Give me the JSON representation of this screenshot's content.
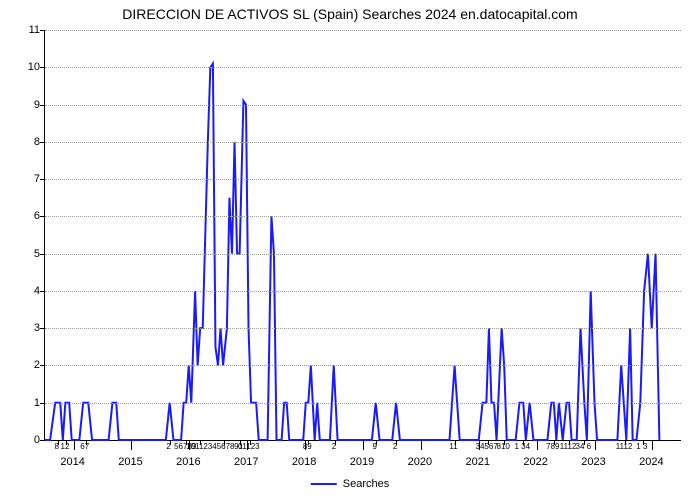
{
  "chart": {
    "type": "line",
    "title": "DIRECCION DE ACTIVOS SL (Spain) Searches 2024 en.datocapital.com",
    "title_fontsize": 14,
    "background_color": "#ffffff",
    "grid_color": "#999999",
    "line_color": "#1a1aff",
    "line_width": 2,
    "ylim": [
      0,
      11
    ],
    "ytick_vals": [
      0,
      1,
      2,
      3,
      4,
      5,
      6,
      7,
      8,
      9,
      10,
      11
    ],
    "year_labels": [
      "2014",
      "2015",
      "2016",
      "2017",
      "2018",
      "2019",
      "2020",
      "2021",
      "2022",
      "2023",
      "2024"
    ],
    "year_positions": [
      0.045,
      0.136,
      0.227,
      0.318,
      0.409,
      0.5,
      0.591,
      0.682,
      0.773,
      0.864,
      0.955
    ],
    "minor_tick_groups": [
      {
        "pos": 0.02,
        "label": "8"
      },
      {
        "pos": 0.033,
        "label": "12"
      },
      {
        "pos": 0.064,
        "label": "67"
      },
      {
        "pos": 0.196,
        "label": "2"
      },
      {
        "pos": 0.222,
        "label": "56789"
      },
      {
        "pos": 0.244,
        "label": "101123"
      },
      {
        "pos": 0.282,
        "label": "45678"
      },
      {
        "pos": 0.306,
        "label": "91"
      },
      {
        "pos": 0.322,
        "label": "01123"
      },
      {
        "pos": 0.414,
        "label": "89"
      },
      {
        "pos": 0.456,
        "label": "2"
      },
      {
        "pos": 0.52,
        "label": "9"
      },
      {
        "pos": 0.552,
        "label": "2"
      },
      {
        "pos": 0.644,
        "label": "11"
      },
      {
        "pos": 0.696,
        "label": "34567"
      },
      {
        "pos": 0.722,
        "label": "810"
      },
      {
        "pos": 0.752,
        "label": "1 34"
      },
      {
        "pos": 0.8,
        "label": "789"
      },
      {
        "pos": 0.824,
        "label": "1112"
      },
      {
        "pos": 0.848,
        "label": "34 6"
      },
      {
        "pos": 0.912,
        "label": "1112"
      },
      {
        "pos": 0.94,
        "label": "1 3"
      }
    ],
    "data_points": [
      [
        0.0,
        0
      ],
      [
        0.008,
        0
      ],
      [
        0.016,
        1
      ],
      [
        0.024,
        1
      ],
      [
        0.028,
        0
      ],
      [
        0.032,
        1
      ],
      [
        0.038,
        1
      ],
      [
        0.042,
        0
      ],
      [
        0.054,
        0
      ],
      [
        0.06,
        1
      ],
      [
        0.068,
        1
      ],
      [
        0.074,
        0
      ],
      [
        0.1,
        0
      ],
      [
        0.106,
        1
      ],
      [
        0.112,
        1
      ],
      [
        0.116,
        0
      ],
      [
        0.136,
        0
      ],
      [
        0.19,
        0
      ],
      [
        0.196,
        1
      ],
      [
        0.202,
        0
      ],
      [
        0.214,
        0
      ],
      [
        0.218,
        1
      ],
      [
        0.222,
        1
      ],
      [
        0.226,
        2
      ],
      [
        0.23,
        1
      ],
      [
        0.236,
        4
      ],
      [
        0.24,
        2
      ],
      [
        0.244,
        3
      ],
      [
        0.248,
        3
      ],
      [
        0.256,
        8
      ],
      [
        0.26,
        10
      ],
      [
        0.264,
        10.1
      ],
      [
        0.268,
        2.5
      ],
      [
        0.272,
        2
      ],
      [
        0.276,
        3
      ],
      [
        0.28,
        2
      ],
      [
        0.286,
        3
      ],
      [
        0.29,
        6.5
      ],
      [
        0.294,
        5
      ],
      [
        0.298,
        8
      ],
      [
        0.302,
        5
      ],
      [
        0.306,
        5
      ],
      [
        0.312,
        9.1
      ],
      [
        0.316,
        9
      ],
      [
        0.32,
        3
      ],
      [
        0.324,
        1
      ],
      [
        0.332,
        1
      ],
      [
        0.336,
        0
      ],
      [
        0.35,
        0
      ],
      [
        0.356,
        6
      ],
      [
        0.36,
        5
      ],
      [
        0.364,
        0
      ],
      [
        0.372,
        0
      ],
      [
        0.376,
        1
      ],
      [
        0.38,
        1
      ],
      [
        0.384,
        0
      ],
      [
        0.406,
        0
      ],
      [
        0.41,
        1
      ],
      [
        0.414,
        1
      ],
      [
        0.418,
        2
      ],
      [
        0.424,
        0
      ],
      [
        0.428,
        1
      ],
      [
        0.432,
        0
      ],
      [
        0.448,
        0
      ],
      [
        0.454,
        2
      ],
      [
        0.46,
        0
      ],
      [
        0.5,
        0
      ],
      [
        0.514,
        0
      ],
      [
        0.52,
        1
      ],
      [
        0.526,
        0
      ],
      [
        0.546,
        0
      ],
      [
        0.552,
        1
      ],
      [
        0.558,
        0
      ],
      [
        0.591,
        0
      ],
      [
        0.636,
        0
      ],
      [
        0.644,
        2
      ],
      [
        0.652,
        0
      ],
      [
        0.682,
        0
      ],
      [
        0.688,
        1
      ],
      [
        0.694,
        1
      ],
      [
        0.698,
        3
      ],
      [
        0.702,
        1
      ],
      [
        0.706,
        1
      ],
      [
        0.71,
        0
      ],
      [
        0.718,
        3
      ],
      [
        0.722,
        2
      ],
      [
        0.726,
        0
      ],
      [
        0.73,
        0
      ],
      [
        0.74,
        0
      ],
      [
        0.746,
        1
      ],
      [
        0.752,
        1
      ],
      [
        0.756,
        0
      ],
      [
        0.762,
        1
      ],
      [
        0.768,
        0
      ],
      [
        0.79,
        0
      ],
      [
        0.796,
        1
      ],
      [
        0.8,
        1
      ],
      [
        0.804,
        0
      ],
      [
        0.808,
        1
      ],
      [
        0.814,
        0
      ],
      [
        0.82,
        1
      ],
      [
        0.824,
        1
      ],
      [
        0.828,
        0
      ],
      [
        0.836,
        0
      ],
      [
        0.842,
        3
      ],
      [
        0.848,
        1
      ],
      [
        0.852,
        0
      ],
      [
        0.858,
        4
      ],
      [
        0.864,
        1
      ],
      [
        0.868,
        0
      ],
      [
        0.9,
        0
      ],
      [
        0.906,
        2
      ],
      [
        0.91,
        1
      ],
      [
        0.914,
        0
      ],
      [
        0.92,
        3
      ],
      [
        0.924,
        0
      ],
      [
        0.93,
        0
      ],
      [
        0.936,
        1
      ],
      [
        0.942,
        4
      ],
      [
        0.948,
        5
      ],
      [
        0.954,
        3
      ],
      [
        0.96,
        5
      ],
      [
        0.966,
        0
      ]
    ],
    "legend_label": "Searches"
  }
}
